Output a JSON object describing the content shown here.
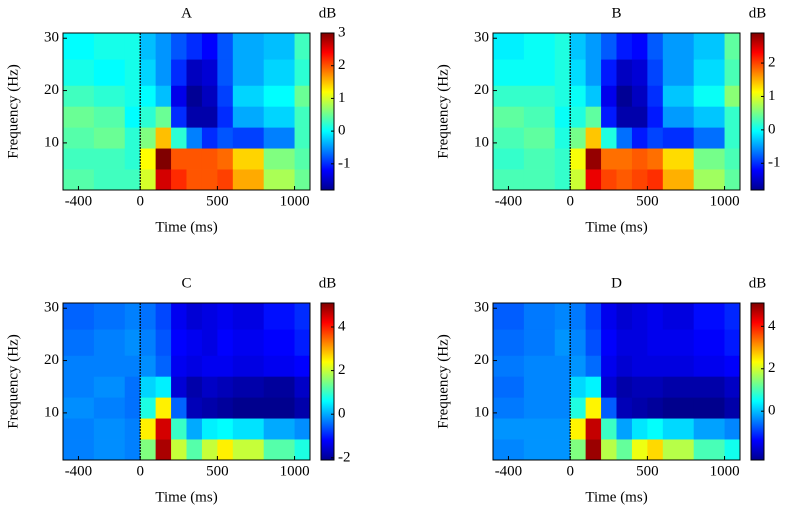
{
  "chart_data": [
    {
      "type": "heatmap",
      "title": "A",
      "colorbar_label": "dB",
      "xlabel": "Time (ms)",
      "ylabel": "Frequency (Hz)",
      "xlim": [
        -500,
        1100
      ],
      "xticks": [
        -400,
        0,
        500,
        1000
      ],
      "ylim": [
        1,
        31
      ],
      "yticks": [
        10,
        20,
        30
      ],
      "clim": [
        -1.8,
        3
      ],
      "cticks": [
        -1,
        0,
        1,
        2,
        3
      ],
      "vline": 0,
      "colormap": "jet",
      "xbins": [
        -500,
        -300,
        -100,
        0,
        100,
        200,
        300,
        400,
        500,
        600,
        800,
        1000,
        1100
      ],
      "ybins": [
        1,
        5,
        9,
        13,
        17,
        21,
        26,
        31
      ],
      "z": [
        [
          0.4,
          0.3,
          0.3,
          1.0,
          2.6,
          2.2,
          2.0,
          2.0,
          2.1,
          1.6,
          0.8,
          0.5
        ],
        [
          0.3,
          0.3,
          0.2,
          1.2,
          3.0,
          2.0,
          2.0,
          2.0,
          1.9,
          1.4,
          0.6,
          0.4
        ],
        [
          0.4,
          0.5,
          0.2,
          0.6,
          1.5,
          0.2,
          -0.6,
          -1.0,
          -0.8,
          -0.9,
          -0.6,
          0.3
        ],
        [
          0.5,
          0.4,
          0.0,
          0.2,
          0.5,
          -1.0,
          -1.6,
          -1.6,
          -1.0,
          -0.4,
          -0.2,
          0.3
        ],
        [
          0.3,
          0.2,
          0.1,
          0.0,
          -0.3,
          -1.3,
          -1.7,
          -1.5,
          -0.9,
          -0.2,
          0.0,
          0.5
        ],
        [
          0.1,
          0.0,
          0.1,
          -0.2,
          -0.5,
          -1.0,
          -1.5,
          -1.4,
          -0.8,
          -0.4,
          -0.2,
          0.2
        ],
        [
          0.0,
          0.1,
          0.1,
          -0.3,
          -0.5,
          -0.8,
          -1.0,
          -1.2,
          -0.8,
          -0.4,
          -0.3,
          0.3
        ]
      ]
    },
    {
      "type": "heatmap",
      "title": "B",
      "colorbar_label": "dB",
      "xlabel": "Time (ms)",
      "ylabel": "Frequency (Hz)",
      "xlim": [
        -500,
        1100
      ],
      "xticks": [
        -400,
        0,
        500,
        1000
      ],
      "ylim": [
        1,
        31
      ],
      "yticks": [
        10,
        20,
        30
      ],
      "clim": [
        -1.8,
        2.9
      ],
      "cticks": [
        -1,
        0,
        1,
        2
      ],
      "vline": 0,
      "colormap": "jet",
      "xbins": [
        -500,
        -300,
        -100,
        0,
        100,
        200,
        300,
        400,
        500,
        600,
        800,
        1000,
        1100
      ],
      "ybins": [
        1,
        5,
        9,
        13,
        17,
        21,
        26,
        31
      ],
      "z": [
        [
          0.3,
          0.3,
          0.2,
          0.9,
          2.4,
          2.0,
          1.9,
          2.0,
          2.1,
          1.5,
          0.7,
          0.4
        ],
        [
          0.2,
          0.3,
          0.2,
          1.1,
          2.8,
          1.8,
          1.8,
          1.9,
          1.8,
          1.3,
          0.5,
          0.3
        ],
        [
          0.3,
          0.4,
          0.1,
          0.5,
          1.4,
          0.1,
          -0.7,
          -1.1,
          -0.9,
          -1.0,
          -0.7,
          0.2
        ],
        [
          0.4,
          0.3,
          0.0,
          0.1,
          0.4,
          -1.1,
          -1.6,
          -1.6,
          -1.1,
          -0.5,
          -0.3,
          0.2
        ],
        [
          0.2,
          0.2,
          0.1,
          0.0,
          -0.3,
          -1.3,
          -1.7,
          -1.5,
          -1.0,
          -0.3,
          0.0,
          0.6
        ],
        [
          0.0,
          0.0,
          0.1,
          -0.2,
          -0.5,
          -1.1,
          -1.5,
          -1.4,
          -0.9,
          -0.5,
          -0.2,
          0.3
        ],
        [
          -0.1,
          0.0,
          0.1,
          -0.3,
          -0.5,
          -0.8,
          -1.1,
          -1.2,
          -0.8,
          -0.5,
          -0.3,
          0.4
        ]
      ]
    },
    {
      "type": "heatmap",
      "title": "C",
      "colorbar_label": "dB",
      "xlabel": "Time (ms)",
      "ylabel": "Frequency (Hz)",
      "xlim": [
        -500,
        1100
      ],
      "xticks": [
        -400,
        0,
        500,
        1000
      ],
      "ylim": [
        1,
        31
      ],
      "yticks": [
        10,
        20,
        30
      ],
      "clim": [
        -2.1,
        5.1
      ],
      "cticks": [
        -2,
        0,
        2,
        4
      ],
      "vline": 0,
      "colormap": "jet",
      "xbins": [
        -500,
        -300,
        -100,
        0,
        100,
        200,
        300,
        400,
        500,
        600,
        800,
        1000,
        1100
      ],
      "ybins": [
        1,
        5,
        9,
        13,
        17,
        21,
        26,
        31
      ],
      "z": [
        [
          -0.3,
          -0.2,
          -0.3,
          1.5,
          4.8,
          2.0,
          1.2,
          2.0,
          2.5,
          2.0,
          1.2,
          0.8
        ],
        [
          -0.3,
          -0.2,
          -0.3,
          2.5,
          4.5,
          1.0,
          0.0,
          0.5,
          0.6,
          0.4,
          0.0,
          -0.2
        ],
        [
          -0.2,
          -0.3,
          -0.4,
          0.8,
          2.5,
          -0.5,
          -1.7,
          -1.8,
          -1.9,
          -2.0,
          -2.0,
          -1.8
        ],
        [
          -0.3,
          -0.2,
          -0.4,
          0.3,
          0.5,
          -1.5,
          -1.8,
          -1.6,
          -1.7,
          -1.8,
          -1.9,
          -1.6
        ],
        [
          -0.3,
          -0.3,
          -0.3,
          -0.2,
          -0.5,
          -1.3,
          -1.4,
          -1.3,
          -1.3,
          -1.4,
          -1.3,
          -1.2
        ],
        [
          -0.4,
          -0.3,
          -0.2,
          -0.3,
          -0.6,
          -1.2,
          -1.3,
          -1.4,
          -1.2,
          -1.3,
          -1.2,
          -1.0
        ],
        [
          -0.5,
          -0.4,
          -0.3,
          -0.4,
          -0.7,
          -1.3,
          -1.5,
          -1.4,
          -1.3,
          -1.4,
          -1.1,
          -0.9
        ]
      ]
    },
    {
      "type": "heatmap",
      "title": "D",
      "colorbar_label": "dB",
      "xlabel": "Time (ms)",
      "ylabel": "Frequency (Hz)",
      "xlim": [
        -500,
        1100
      ],
      "xticks": [
        -400,
        0,
        500,
        1000
      ],
      "ylim": [
        1,
        31
      ],
      "yticks": [
        10,
        20,
        30
      ],
      "clim": [
        -2.3,
        5.1
      ],
      "cticks": [
        0,
        2,
        4
      ],
      "vline": 0,
      "colormap": "jet",
      "xbins": [
        -500,
        -300,
        -100,
        0,
        100,
        200,
        300,
        400,
        500,
        600,
        800,
        1000,
        1100
      ],
      "ybins": [
        1,
        5,
        9,
        13,
        17,
        21,
        26,
        31
      ],
      "z": [
        [
          -0.4,
          -0.3,
          -0.3,
          1.4,
          4.9,
          1.8,
          1.2,
          2.2,
          2.6,
          1.8,
          1.0,
          0.6
        ],
        [
          -0.3,
          -0.3,
          -0.3,
          2.4,
          4.6,
          0.9,
          -0.2,
          0.3,
          0.5,
          0.2,
          -0.2,
          -0.4
        ],
        [
          -0.5,
          -0.4,
          -0.4,
          0.7,
          2.4,
          -0.7,
          -1.9,
          -2.0,
          -2.1,
          -2.2,
          -2.2,
          -2.0
        ],
        [
          -0.6,
          -0.4,
          -0.4,
          0.2,
          0.4,
          -1.7,
          -2.0,
          -1.9,
          -1.9,
          -2.0,
          -2.0,
          -1.8
        ],
        [
          -0.5,
          -0.4,
          -0.4,
          -0.3,
          -0.6,
          -1.5,
          -1.7,
          -1.6,
          -1.6,
          -1.6,
          -1.5,
          -1.4
        ],
        [
          -0.6,
          -0.5,
          -0.3,
          -0.4,
          -0.8,
          -1.4,
          -1.6,
          -1.6,
          -1.5,
          -1.5,
          -1.4,
          -1.2
        ],
        [
          -0.7,
          -0.5,
          -0.4,
          -0.5,
          -0.9,
          -1.5,
          -1.7,
          -1.6,
          -1.5,
          -1.6,
          -1.3,
          -1.1
        ]
      ]
    }
  ]
}
